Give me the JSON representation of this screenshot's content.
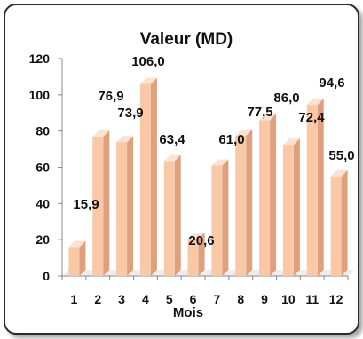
{
  "chart_data": {
    "type": "bar",
    "title": "Valeur (MD)",
    "xlabel": "Mois",
    "ylabel": "",
    "categories": [
      "1",
      "2",
      "3",
      "4",
      "5",
      "6",
      "7",
      "8",
      "9",
      "10",
      "11",
      "12"
    ],
    "values": [
      15.9,
      76.9,
      73.9,
      106.0,
      63.4,
      20.6,
      61.0,
      77.5,
      86.0,
      72.4,
      94.6,
      55.0
    ],
    "value_labels": [
      "15,9",
      "76,9",
      "73,9",
      "106,0",
      "63,4",
      "20,6",
      "61,0",
      "77,5",
      "86,0",
      "72,4",
      "94,6",
      "55,0"
    ],
    "y_ticks": [
      "0",
      "20",
      "40",
      "60",
      "80",
      "100",
      "120"
    ],
    "ylim": [
      0,
      120
    ],
    "grid": false,
    "legend": "none",
    "colors": {
      "bar_front": "#f9c8a6",
      "bar_side": "#e0a07e",
      "bar_top": "#fde2cf",
      "axis": "#888888"
    }
  }
}
